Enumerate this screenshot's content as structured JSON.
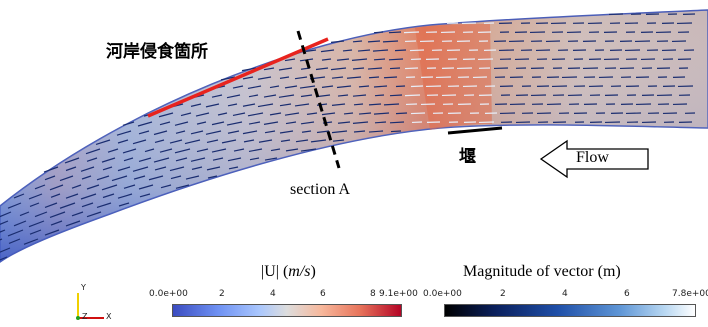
{
  "annotations": {
    "erosion_label": "河岸侵食箇所",
    "weir_label": "堰",
    "section_label": "section A",
    "flow_label": "Flow"
  },
  "colorbar_velocity": {
    "title_prefix": "|U| (",
    "title_unit_italic": "m/s",
    "title_suffix": ")",
    "ticks": [
      "0.0e+00",
      "2",
      "4",
      "6",
      "8",
      "9.1e+00"
    ],
    "colormap": "cool-warm"
  },
  "colorbar_vector": {
    "title": "Magnitude of vector (m)",
    "ticks": [
      "0.0e+00",
      "2",
      "4",
      "6",
      "7.8e+00"
    ],
    "colormap": "blue-white"
  },
  "axes_triad": {
    "y": "Y",
    "z": "Z",
    "x": "X"
  },
  "colors": {
    "erosion_line": "#e8231e",
    "section_line": "#000000",
    "river_edge": "#4a5db8"
  }
}
